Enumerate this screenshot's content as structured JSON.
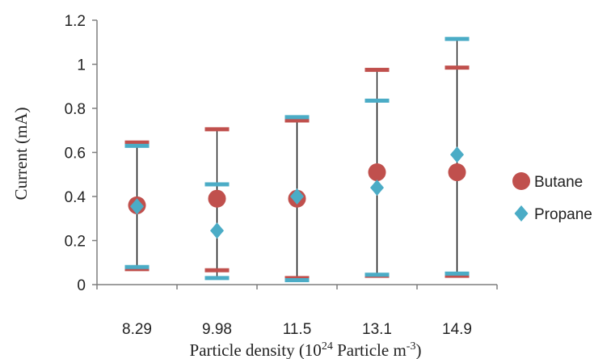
{
  "chart_data": {
    "type": "scatter",
    "title": "",
    "xlabel": {
      "main": "Particle density (10",
      "sup1": "24",
      "mid": " Particle m",
      "sup2": "-3",
      "end": ")"
    },
    "ylabel": "Current (mA)",
    "categories": [
      "8.29",
      "9.98",
      "11.5",
      "13.1",
      "14.9"
    ],
    "y_ticks": [
      "0",
      "0.2",
      "0.4",
      "0.6",
      "0.8",
      "1",
      "1.2"
    ],
    "ylim": [
      0,
      1.2
    ],
    "grid": false,
    "legend_position": "right",
    "series": [
      {
        "name": "Butane",
        "color": "#c0504d",
        "marker": "circle",
        "values": [
          0.36,
          0.39,
          0.39,
          0.51,
          0.51
        ],
        "upper": [
          0.645,
          0.705,
          0.745,
          0.975,
          0.985
        ],
        "lower": [
          0.07,
          0.065,
          0.03,
          0.04,
          0.04
        ]
      },
      {
        "name": "Propane",
        "color": "#4bacc6",
        "marker": "diamond",
        "values": [
          0.355,
          0.245,
          0.4,
          0.44,
          0.59
        ],
        "upper": [
          0.63,
          0.455,
          0.76,
          0.835,
          1.115
        ],
        "lower": [
          0.08,
          0.03,
          0.02,
          0.045,
          0.05
        ]
      }
    ]
  }
}
